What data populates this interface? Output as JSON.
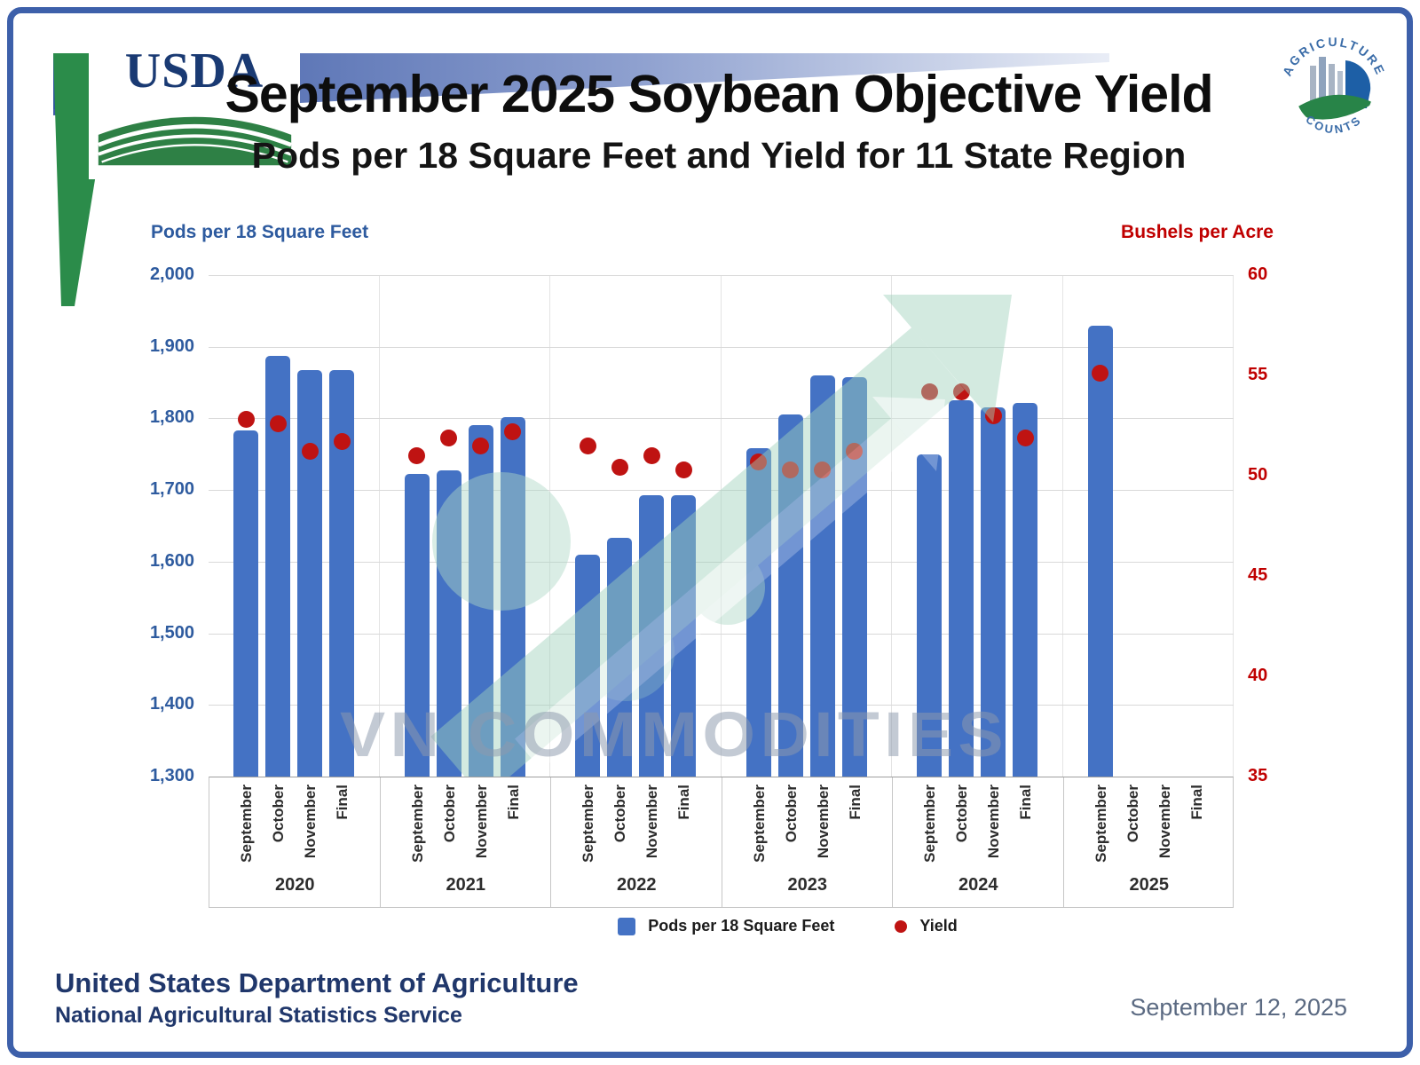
{
  "header": {
    "usda_logo_text": "USDA",
    "title": "September 2025 Soybean Objective Yield",
    "subtitle": "Pods per 18 Square Feet and Yield for 11 State Region",
    "badge_top": "AGRICULTURE",
    "badge_bottom": "COUNTS"
  },
  "chart_data": {
    "type": "bar",
    "title": "September 2025 Soybean Objective Yield",
    "subtitle": "Pods per 18 Square Feet and Yield for 11 State Region",
    "grid": true,
    "legend_position": "bottom",
    "left_axis": {
      "label": "Pods per 18 Square Feet",
      "min": 1300,
      "max": 2000,
      "step": 100,
      "ticks": [
        {
          "value": 2000,
          "label": "2,000"
        },
        {
          "value": 1900,
          "label": "1,900"
        },
        {
          "value": 1800,
          "label": "1,800"
        },
        {
          "value": 1700,
          "label": "1,700"
        },
        {
          "value": 1600,
          "label": "1,600"
        },
        {
          "value": 1500,
          "label": "1,500"
        },
        {
          "value": 1400,
          "label": "1,400"
        },
        {
          "value": 1300,
          "label": "1,300"
        }
      ]
    },
    "right_axis": {
      "label": "Bushels per Acre",
      "min": 35,
      "max": 60,
      "step": 5,
      "ticks": [
        {
          "value": 60,
          "label": "60"
        },
        {
          "value": 55,
          "label": "55"
        },
        {
          "value": 50,
          "label": "50"
        },
        {
          "value": 45,
          "label": "45"
        },
        {
          "value": 40,
          "label": "40"
        },
        {
          "value": 35,
          "label": "35"
        }
      ]
    },
    "periods": [
      "September",
      "October",
      "November",
      "Final"
    ],
    "groups": [
      {
        "year": "2020",
        "pods": [
          1783,
          1887,
          1868,
          1868
        ],
        "yield": [
          52.8,
          52.6,
          51.2,
          51.7
        ]
      },
      {
        "year": "2021",
        "pods": [
          1722,
          1728,
          1791,
          1802
        ],
        "yield": [
          51.0,
          51.9,
          51.5,
          52.2
        ]
      },
      {
        "year": "2022",
        "pods": [
          1610,
          1633,
          1693,
          1693
        ],
        "yield": [
          51.5,
          50.4,
          51.0,
          50.3
        ]
      },
      {
        "year": "2023",
        "pods": [
          1758,
          1805,
          1860,
          1858
        ],
        "yield": [
          50.7,
          50.3,
          50.3,
          51.2
        ]
      },
      {
        "year": "2024",
        "pods": [
          1750,
          1825,
          1815,
          1822
        ],
        "yield": [
          54.2,
          54.2,
          53.0,
          51.9
        ]
      },
      {
        "year": "2025",
        "pods": [
          1929,
          null,
          null,
          null
        ],
        "yield": [
          55.1,
          null,
          null,
          null
        ]
      }
    ],
    "series": [
      {
        "name": "Pods per 18 Square Feet",
        "type": "bar",
        "color": "#4472c4"
      },
      {
        "name": "Yield",
        "type": "point",
        "color": "#bf1312"
      }
    ]
  },
  "watermark": {
    "text": "VN COMMODITIES"
  },
  "footer": {
    "org": "United States Department of Agriculture",
    "service": "National Agricultural Statistics Service",
    "date": "September 12, 2025"
  },
  "colors": {
    "bar": "#4472c4",
    "marker": "#bf1312",
    "left_axis": "#2e5b9f",
    "right_axis": "#c00000",
    "frame": "#3d60aa",
    "watermark_green": "#a9d6c2"
  }
}
